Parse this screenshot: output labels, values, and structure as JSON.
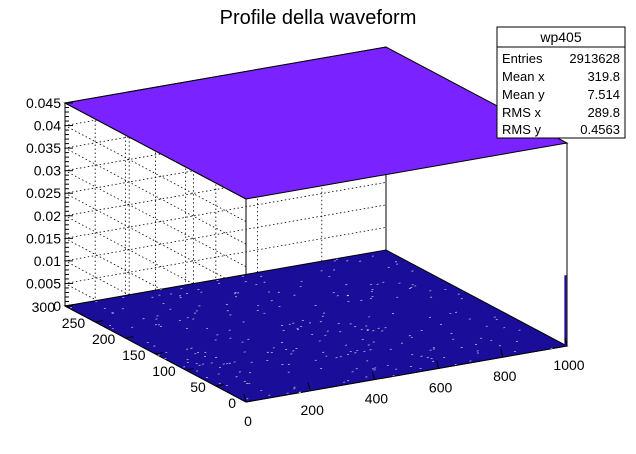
{
  "chart_data": {
    "type": "surface",
    "title": "Profile della waveform",
    "xlabel": "",
    "ylabel": "",
    "zlabel": "",
    "xlim": [
      0,
      1000
    ],
    "ylim": [
      0,
      300
    ],
    "zlim": [
      0,
      0.045
    ],
    "x_ticks": [
      "0",
      "200",
      "400",
      "600",
      "800",
      "1000"
    ],
    "y_ticks": [
      "0",
      "50",
      "100",
      "150",
      "200",
      "250",
      "300"
    ],
    "z_ticks": [
      "0",
      "0.005",
      "0.01",
      "0.015",
      "0.02",
      "0.025",
      "0.03",
      "0.035",
      "0.04",
      "0.045"
    ],
    "series": [
      {
        "values": [
          0.045,
          0.045,
          0.045,
          0.045
        ],
        "color": "#7a22ff"
      },
      {
        "values": [
          0,
          0,
          0,
          0
        ],
        "color": "#1a0d99"
      }
    ],
    "grid": true,
    "legend": "none"
  },
  "stats_box": {
    "name": "wp405",
    "rows": [
      {
        "label": "Entries",
        "value": "2913628"
      },
      {
        "label": "Mean x",
        "value": "319.8"
      },
      {
        "label": "Mean y",
        "value": "7.514"
      },
      {
        "label": "RMS x",
        "value": "289.8"
      },
      {
        "label": "RMS y",
        "value": "0.4563"
      }
    ]
  }
}
